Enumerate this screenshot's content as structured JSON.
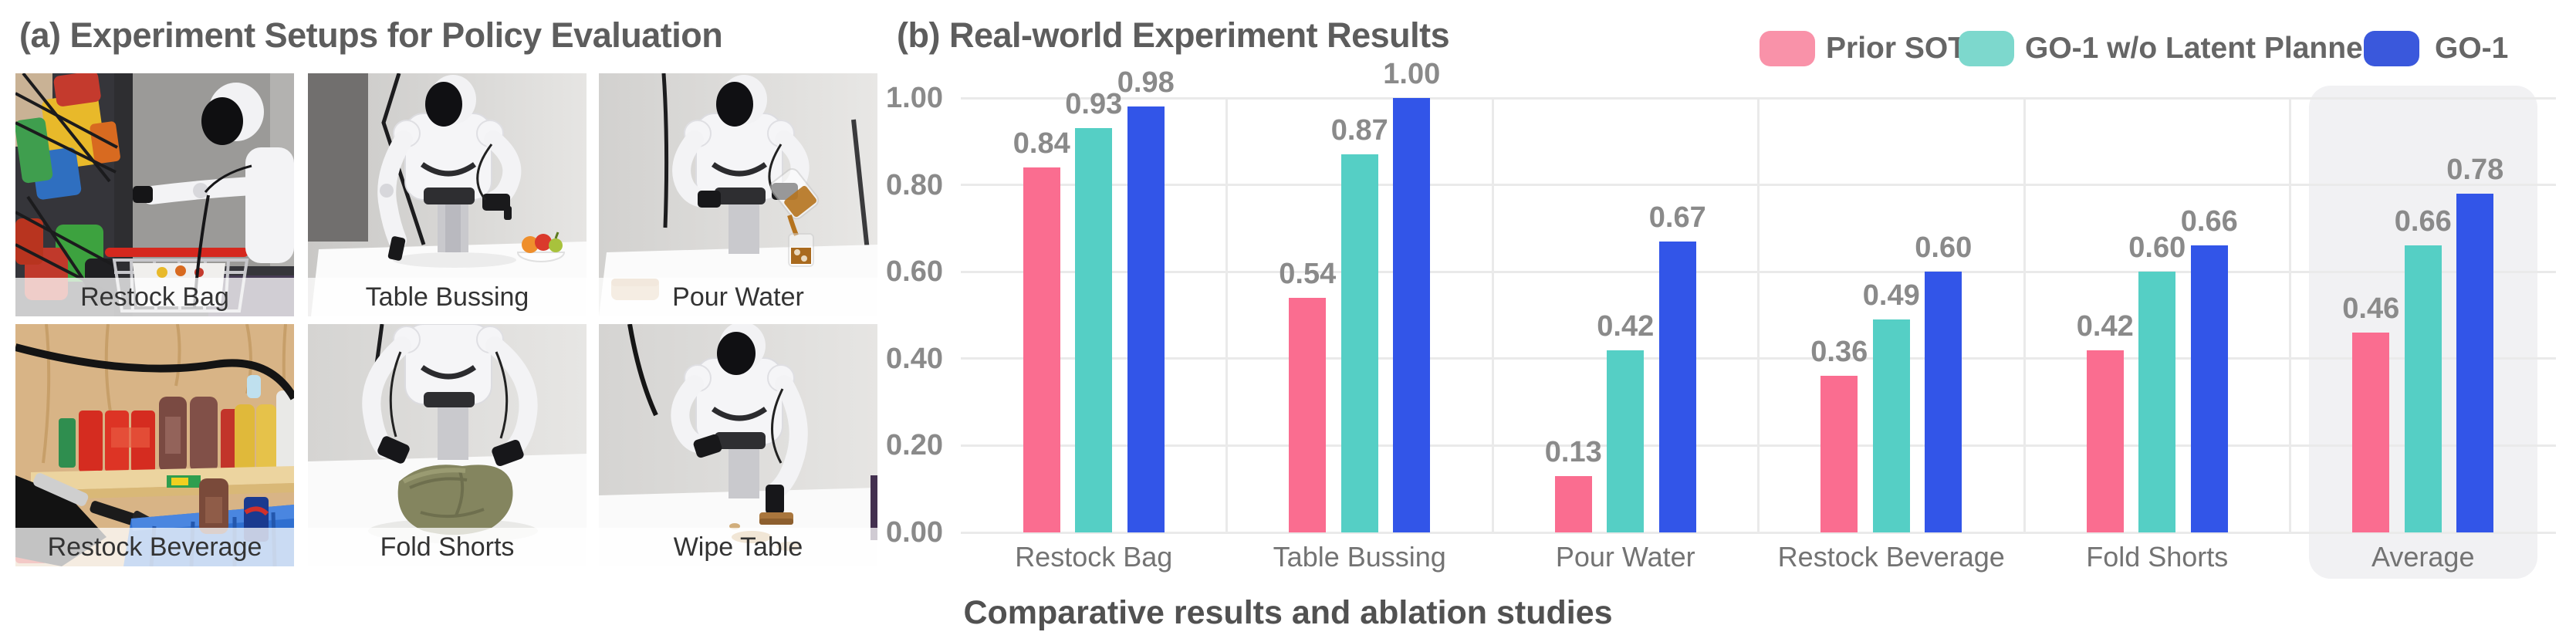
{
  "panel_a": {
    "title": "(a) Experiment Setups for Policy Evaluation",
    "photos": [
      {
        "label": "Restock Bag"
      },
      {
        "label": "Table Bussing"
      },
      {
        "label": "Pour Water"
      },
      {
        "label": "Restock Beverage"
      },
      {
        "label": "Fold Shorts"
      },
      {
        "label": "Wipe Table"
      }
    ]
  },
  "panel_b": {
    "title": "(b) Real-world Experiment Results",
    "legend": [
      {
        "label": "Prior SOTA",
        "color": "#F992A9"
      },
      {
        "label": "GO-1 w/o Latent Planner",
        "color": "#7DD8CD"
      },
      {
        "label": "GO-1",
        "color": "#3A58DC"
      }
    ],
    "caption": "Comparative results and ablation studies"
  },
  "chart_data": {
    "type": "bar",
    "title": "(b) Real-world Experiment Results",
    "categories": [
      "Restock Bag",
      "Table Bussing",
      "Pour Water",
      "Restock Beverage",
      "Fold Shorts",
      "Average"
    ],
    "series": [
      {
        "name": "Prior SOTA",
        "color": "#FA6D90",
        "values": [
          0.84,
          0.54,
          0.13,
          0.36,
          0.42,
          0.46
        ]
      },
      {
        "name": "GO-1 w/o Latent Planner",
        "color": "#55CFC5",
        "values": [
          0.93,
          0.87,
          0.42,
          0.49,
          0.6,
          0.66
        ]
      },
      {
        "name": "GO-1",
        "color": "#3255E8",
        "values": [
          0.98,
          1.0,
          0.67,
          0.6,
          0.66,
          0.78
        ]
      }
    ],
    "ylim": [
      0.0,
      1.0
    ],
    "yticks": [
      0.0,
      0.2,
      0.4,
      0.6,
      0.8,
      1.0
    ],
    "grid": true,
    "legend_position": "top-right",
    "highlight_category": "Average",
    "value_labels": true,
    "xlabel": "",
    "ylabel": ""
  }
}
